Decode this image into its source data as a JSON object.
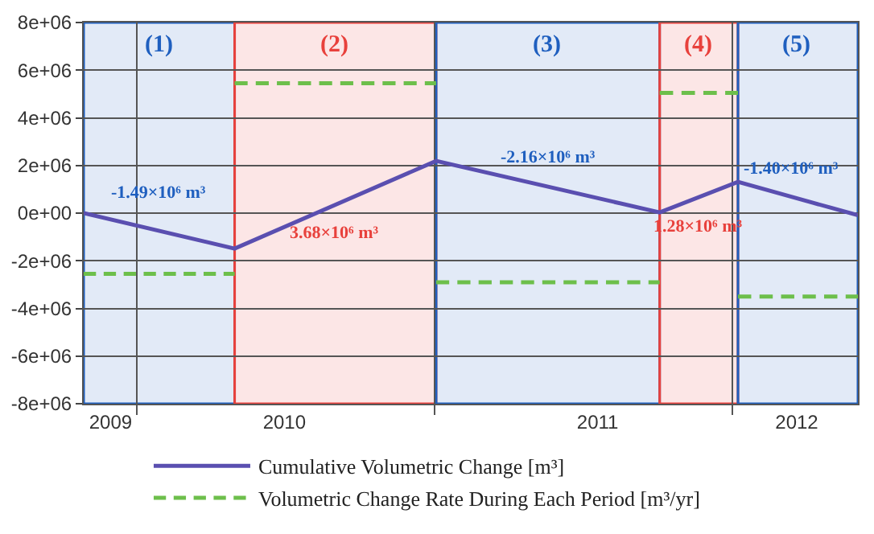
{
  "chart_data": {
    "type": "line",
    "x": [
      "2009-10-28",
      "2010-05-01",
      "2011-01-03",
      "2011-10-04",
      "2012-01-08",
      "2012-06-03"
    ],
    "series": [
      {
        "name": "Cumulative Volumetric Change [m³]",
        "color": "#5a4fb0",
        "line_style": "solid",
        "values": [
          0,
          -1490000,
          2190000,
          30000,
          1310000,
          -90000
        ]
      },
      {
        "name": "Volumetric Change Rate During Each Period [m³/yr]",
        "color": "#6dbf4b",
        "line_style": "dashed",
        "x": [
          "2009-10-28",
          "2010-05-01"
        ],
        "values": [
          -2550000,
          -2550000
        ]
      },
      {
        "color": "#6dbf4b",
        "line_style": "dashed",
        "x": [
          "2010-05-01",
          "2011-01-03"
        ],
        "values": [
          5450000,
          5450000
        ]
      },
      {
        "color": "#6dbf4b",
        "line_style": "dashed",
        "x": [
          "2011-01-03",
          "2011-10-04"
        ],
        "values": [
          -2900000,
          -2900000
        ]
      },
      {
        "color": "#6dbf4b",
        "line_style": "dashed",
        "x": [
          "2011-10-04",
          "2012-01-08"
        ],
        "values": [
          5050000,
          5050000
        ]
      },
      {
        "color": "#6dbf4b",
        "line_style": "dashed",
        "x": [
          "2012-01-08",
          "2012-06-03"
        ],
        "values": [
          -3500000,
          -3500000
        ]
      }
    ],
    "xlim": [
      "2009-10-28",
      "2012-06-03"
    ],
    "xticks": [
      {
        "value": "2009-11-30",
        "label": "2009"
      },
      {
        "value": "2010-01-01",
        "label": null
      },
      {
        "value": "2010-07-01",
        "label": "2010"
      },
      {
        "value": "2011-01-01",
        "label": null
      },
      {
        "value": "2011-07-20",
        "label": "2011"
      },
      {
        "value": "2012-01-01",
        "label": null
      },
      {
        "value": "2012-03-20",
        "label": "2012"
      }
    ],
    "ylim": [
      -8000000,
      8000000
    ],
    "yticks": [
      {
        "value": -8000000,
        "label": "-8e+06"
      },
      {
        "value": -6000000,
        "label": "-6e+06"
      },
      {
        "value": -4000000,
        "label": "-4e+06"
      },
      {
        "value": -2000000,
        "label": "-2e+06"
      },
      {
        "value": 0,
        "label": "0e+00"
      },
      {
        "value": 2000000,
        "label": "2e+06"
      },
      {
        "value": 4000000,
        "label": "4e+06"
      },
      {
        "value": 6000000,
        "label": "6e+06"
      },
      {
        "value": 8000000,
        "label": "8e+06"
      }
    ],
    "bands": [
      {
        "axis": "x",
        "from": "2009-10-28",
        "to": "2010-05-01",
        "label": "(1)",
        "color": "#1f5fbf"
      },
      {
        "axis": "x",
        "from": "2010-05-01",
        "to": "2011-01-03",
        "label": "(2)",
        "color": "#e8413c"
      },
      {
        "axis": "x",
        "from": "2011-01-03",
        "to": "2011-10-04",
        "label": "(3)",
        "color": "#1f5fbf"
      },
      {
        "axis": "x",
        "from": "2011-10-04",
        "to": "2012-01-08",
        "label": "(4)",
        "color": "#e8413c"
      },
      {
        "axis": "x",
        "from": "2012-01-08",
        "to": "2012-06-03",
        "label": "(5)",
        "color": "#1f5fbf"
      }
    ],
    "annotations": [
      "-1.49×10⁶ m³",
      "3.68×10⁶ m³",
      "-2.16×10⁶ m³",
      "1.28×10⁶ m³",
      "-1.40×10⁶ m³"
    ],
    "grid": true,
    "legend": "bottom"
  }
}
